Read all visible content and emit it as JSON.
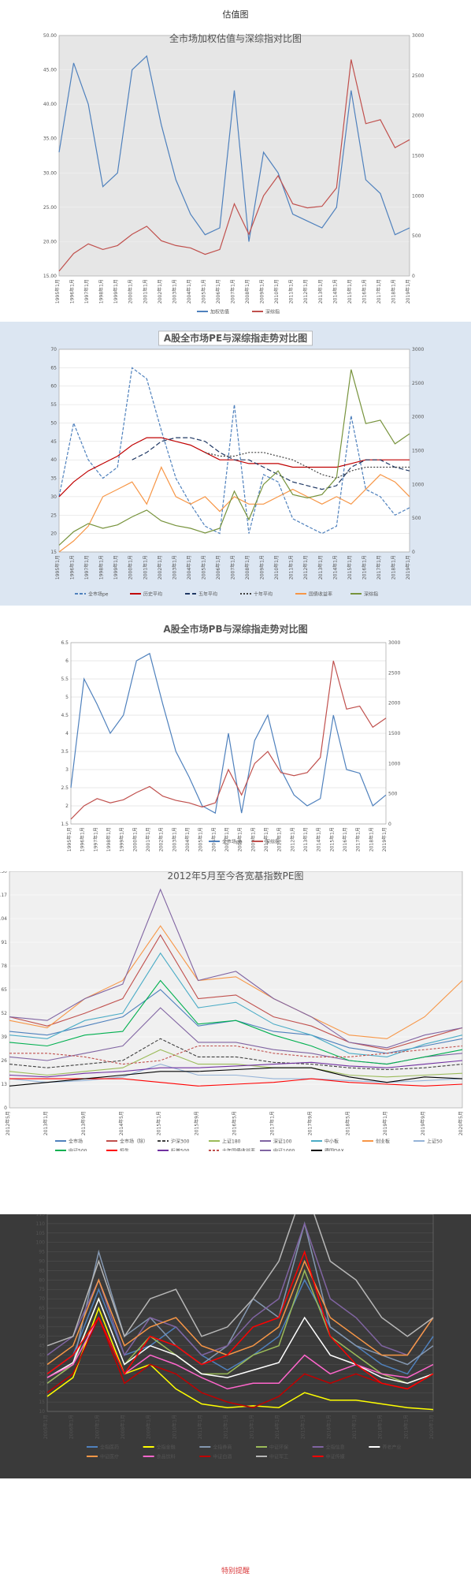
{
  "page": {
    "header": "估值图",
    "footer": "特别提醒"
  },
  "chart_data": [
    {
      "type": "line",
      "title": "全市场加权估值与深综指对比图",
      "ylim": [
        15,
        50
      ],
      "y2lim": [
        0,
        3000
      ],
      "yticks": [
        "15.00",
        "20.00",
        "25.00",
        "30.00",
        "35.00",
        "40.00",
        "45.00",
        "50.00"
      ],
      "y2ticks": [
        "0",
        "500",
        "1000",
        "1500",
        "2000",
        "2500",
        "3000"
      ],
      "x": [
        "1995年1月",
        "1996年1月",
        "1997年1月",
        "1998年1月",
        "1999年1月",
        "2000年1月",
        "2001年1月",
        "2002年1月",
        "2003年1月",
        "2004年1月",
        "2005年1月",
        "2006年1月",
        "2007年1月",
        "2008年1月",
        "2009年1月",
        "2010年1月",
        "2011年1月",
        "2012年1月",
        "2013年1月",
        "2014年1月",
        "2015年1月",
        "2016年1月",
        "2017年1月",
        "2018年1月",
        "2019年1月"
      ],
      "series": [
        {
          "name": "加权估值",
          "axis": "y",
          "color": "#4f81bd",
          "values": [
            33,
            46,
            40,
            28,
            30,
            45,
            47,
            37,
            29,
            24,
            21,
            22,
            42,
            20,
            33,
            30,
            24,
            23,
            22,
            25,
            42,
            29,
            27,
            21,
            22
          ]
        },
        {
          "name": "深综指",
          "axis": "y2",
          "color": "#c0504d",
          "values": [
            60,
            280,
            400,
            330,
            380,
            520,
            620,
            440,
            380,
            350,
            270,
            330,
            900,
            520,
            1000,
            1250,
            900,
            850,
            870,
            1100,
            2700,
            1900,
            1950,
            1600,
            1700
          ]
        }
      ],
      "legend": "bottom"
    },
    {
      "type": "line",
      "title": "A股全市场PE与深综指走势对比图",
      "ylim": [
        15,
        70
      ],
      "y2lim": [
        0,
        3000
      ],
      "yticks": [
        "15",
        "20",
        "25",
        "30",
        "35",
        "40",
        "45",
        "50",
        "55",
        "60",
        "65",
        "70"
      ],
      "y2ticks": [
        "0",
        "500",
        "1000",
        "1500",
        "2000",
        "2500",
        "3000"
      ],
      "x": [
        "1995年1月",
        "1996年1月",
        "1997年1月",
        "1998年1月",
        "1999年1月",
        "2000年1月",
        "2001年1月",
        "2002年1月",
        "2003年1月",
        "2004年1月",
        "2005年1月",
        "2006年1月",
        "2007年1月",
        "2008年1月",
        "2009年1月",
        "2010年1月",
        "2011年1月",
        "2012年1月",
        "2013年1月",
        "2014年1月",
        "2015年1月",
        "2016年1月",
        "2017年1月",
        "2018年1月",
        "2019年1月"
      ],
      "series": [
        {
          "name": "全市场pe",
          "axis": "y",
          "color": "#4f81bd",
          "dash": "4 2",
          "values": [
            30,
            50,
            40,
            35,
            38,
            65,
            62,
            48,
            35,
            28,
            22,
            20,
            55,
            20,
            36,
            34,
            24,
            22,
            20,
            22,
            52,
            32,
            30,
            25,
            27
          ]
        },
        {
          "name": "历史平均",
          "axis": "y",
          "color": "#c00000",
          "values": [
            30,
            34,
            37,
            39,
            41,
            44,
            46,
            46,
            45,
            44,
            42,
            40,
            40,
            39,
            39,
            39,
            38,
            38,
            38,
            38,
            39,
            40,
            40,
            40,
            40
          ]
        },
        {
          "name": "五年平均",
          "axis": "y",
          "color": "#1f3864",
          "dash": "6 3",
          "values": [
            null,
            null,
            null,
            null,
            null,
            40,
            42,
            45,
            46,
            46,
            45,
            42,
            40,
            40,
            38,
            36,
            34,
            33,
            32,
            33,
            38,
            40,
            40,
            38,
            37
          ]
        },
        {
          "name": "十年平均",
          "axis": "y",
          "color": "#404040",
          "dash": "2 2",
          "values": [
            null,
            null,
            null,
            null,
            null,
            null,
            null,
            null,
            null,
            null,
            42,
            41,
            41,
            42,
            42,
            41,
            40,
            38,
            36,
            35,
            37,
            38,
            38,
            38,
            38
          ]
        },
        {
          "name": "国债收益率",
          "axis": "y",
          "color": "#f79646",
          "values": [
            15,
            18,
            22,
            30,
            32,
            34,
            28,
            38,
            30,
            28,
            30,
            26,
            30,
            28,
            28,
            30,
            32,
            30,
            28,
            30,
            28,
            32,
            36,
            34,
            30
          ]
        },
        {
          "name": "深综指",
          "axis": "y2",
          "color": "#77933c",
          "values": [
            100,
            300,
            420,
            350,
            400,
            520,
            620,
            460,
            390,
            350,
            280,
            350,
            900,
            480,
            1000,
            1200,
            850,
            800,
            850,
            1100,
            2700,
            1900,
            1950,
            1600,
            1750
          ]
        }
      ],
      "legend": "bottom"
    },
    {
      "type": "line",
      "title": "A股全市场PB与深综指走势对比图",
      "ylim": [
        1.5,
        6.5
      ],
      "y2lim": [
        0,
        3000
      ],
      "yticks": [
        "1.5",
        "2",
        "2.5",
        "3",
        "3.5",
        "4",
        "4.5",
        "5",
        "5.5",
        "6",
        "6.5"
      ],
      "y2ticks": [
        "0",
        "500",
        "1000",
        "1500",
        "2000",
        "2500",
        "3000"
      ],
      "x": [
        "1995年1月",
        "1996年1月",
        "1997年1月",
        "1998年1月",
        "1999年1月",
        "2000年1月",
        "2001年1月",
        "2002年1月",
        "2003年1月",
        "2004年1月",
        "2005年1月",
        "2006年1月",
        "2007年1月",
        "2008年1月",
        "2009年1月",
        "2010年1月",
        "2011年1月",
        "2012年1月",
        "2013年1月",
        "2014年1月",
        "2015年1月",
        "2016年1月",
        "2017年1月",
        "2018年1月",
        "2019年1月"
      ],
      "series": [
        {
          "name": "全市场pb",
          "axis": "y",
          "color": "#4f81bd",
          "values": [
            2.5,
            5.5,
            4.8,
            4.0,
            4.5,
            6.0,
            6.2,
            4.8,
            3.5,
            2.8,
            2.0,
            1.8,
            4.0,
            1.8,
            3.8,
            4.5,
            3.0,
            2.3,
            2.0,
            2.2,
            4.5,
            3.0,
            2.9,
            2.0,
            2.3
          ]
        },
        {
          "name": "深综指",
          "axis": "y2",
          "color": "#c0504d",
          "values": [
            80,
            300,
            420,
            350,
            400,
            520,
            620,
            460,
            390,
            350,
            280,
            350,
            900,
            480,
            1000,
            1200,
            850,
            800,
            850,
            1100,
            2700,
            1900,
            1950,
            1600,
            1750
          ]
        }
      ],
      "legend": "bottom"
    },
    {
      "type": "line",
      "title": "2012年5月至今各宽基指数PE图",
      "ylim": [
        0,
        130
      ],
      "x": [
        "2012年5月",
        "2013年1月",
        "2013年9月",
        "2014年5月",
        "2015年1月",
        "2015年9月",
        "2016年5月",
        "2017年1月",
        "2017年9月",
        "2018年5月",
        "2019年1月",
        "2019年9月",
        "2020年5月"
      ],
      "series": [
        {
          "name": "全市场",
          "color": "#4f81bd",
          "values": [
            42,
            40,
            45,
            50,
            65,
            45,
            48,
            42,
            40,
            33,
            30,
            34,
            38
          ]
        },
        {
          "name": "全市场（除）",
          "color": "#c0504d",
          "values": [
            50,
            45,
            52,
            60,
            95,
            60,
            62,
            50,
            45,
            36,
            32,
            38,
            44
          ]
        },
        {
          "name": "沪深300",
          "color": "#404040",
          "dash": "4 2",
          "values": [
            24,
            22,
            24,
            26,
            38,
            28,
            28,
            25,
            24,
            22,
            21,
            22,
            24
          ]
        },
        {
          "name": "上证180",
          "color": "#9bbb59",
          "values": [
            20,
            18,
            20,
            22,
            32,
            24,
            24,
            22,
            22,
            18,
            17,
            18,
            19
          ]
        },
        {
          "name": "深证100",
          "color": "#8064a2",
          "values": [
            28,
            26,
            30,
            34,
            55,
            36,
            36,
            32,
            30,
            26,
            24,
            28,
            30
          ]
        },
        {
          "name": "中小板",
          "color": "#4bacc6",
          "values": [
            40,
            38,
            48,
            52,
            85,
            55,
            58,
            46,
            40,
            30,
            28,
            35,
            40
          ]
        },
        {
          "name": "创业板",
          "color": "#f79646",
          "values": [
            48,
            44,
            60,
            70,
            100,
            70,
            72,
            60,
            50,
            40,
            38,
            50,
            70
          ]
        },
        {
          "name": "上证50",
          "color": "#95b3d7",
          "values": [
            16,
            14,
            15,
            17,
            24,
            18,
            18,
            16,
            16,
            15,
            14,
            15,
            16
          ]
        },
        {
          "name": "中证500",
          "color": "#00b050",
          "values": [
            36,
            34,
            40,
            42,
            70,
            46,
            48,
            40,
            34,
            26,
            24,
            28,
            32
          ]
        },
        {
          "name": "恒生",
          "color": "#ff0000",
          "values": [
            16,
            16,
            16,
            16,
            14,
            12,
            13,
            14,
            16,
            14,
            13,
            12,
            13
          ]
        },
        {
          "name": "标普500",
          "color": "#7030a0",
          "values": [
            18,
            17,
            19,
            20,
            22,
            22,
            23,
            24,
            25,
            23,
            22,
            24,
            26
          ]
        },
        {
          "name": "十年国债收益率",
          "color": "#c0504d",
          "dash": "3 2",
          "values": [
            30,
            30,
            28,
            24,
            26,
            34,
            34,
            30,
            28,
            28,
            30,
            32,
            34
          ]
        },
        {
          "name": "中证1000",
          "color": "#8064a2",
          "values": [
            50,
            48,
            60,
            68,
            120,
            70,
            75,
            60,
            50,
            36,
            33,
            40,
            44
          ]
        },
        {
          "name": "德国DAX",
          "color": "#000000",
          "values": [
            12,
            14,
            16,
            18,
            20,
            20,
            21,
            22,
            22,
            17,
            14,
            17,
            16
          ]
        }
      ],
      "legend": "bottom"
    },
    {
      "type": "line",
      "title": "",
      "ylim": [
        10,
        115
      ],
      "yticks": [
        "10",
        "15",
        "20",
        "25",
        "30",
        "35",
        "40",
        "45",
        "50",
        "55",
        "60",
        "65",
        "70",
        "75",
        "80",
        "85",
        "90",
        "95",
        "100",
        "105",
        "110",
        "115"
      ],
      "x": [
        "2005年1月",
        "2006年1月",
        "2007年1月",
        "2008年1月",
        "2009年1月",
        "2010年1月",
        "2011年1月",
        "2012年1月",
        "2013年1月",
        "2014年1月",
        "2015年1月",
        "2016年1月",
        "2017年1月",
        "2018年1月",
        "2019年1月",
        "2020年1月"
      ],
      "series": [
        {
          "name": "全指医药",
          "color": "#4f81bd",
          "values": [
            30,
            40,
            75,
            40,
            45,
            55,
            40,
            32,
            40,
            50,
            80,
            55,
            45,
            35,
            30,
            50
          ]
        },
        {
          "name": "全指金融",
          "color": "#ffff00",
          "values": [
            18,
            28,
            65,
            30,
            35,
            22,
            14,
            12,
            13,
            12,
            20,
            16,
            16,
            14,
            12,
            11
          ]
        },
        {
          "name": "全指券商",
          "color": "#8497b0",
          "values": [
            25,
            35,
            95,
            50,
            60,
            45,
            35,
            45,
            70,
            60,
            110,
            55,
            45,
            40,
            35,
            45
          ]
        },
        {
          "name": "中证环保",
          "color": "#9bbb59",
          "values": [
            25,
            35,
            70,
            35,
            50,
            40,
            30,
            30,
            40,
            45,
            85,
            50,
            40,
            30,
            25,
            30
          ]
        },
        {
          "name": "全指信息",
          "color": "#8064a2",
          "values": [
            40,
            50,
            80,
            40,
            60,
            55,
            40,
            45,
            60,
            70,
            110,
            70,
            60,
            45,
            40,
            60
          ]
        },
        {
          "name": "养老产业",
          "color": "#ffffff",
          "values": [
            28,
            36,
            70,
            35,
            45,
            40,
            30,
            28,
            32,
            36,
            60,
            40,
            35,
            28,
            25,
            30
          ]
        },
        {
          "name": "中证医疗",
          "color": "#f79646",
          "values": [
            35,
            45,
            80,
            45,
            55,
            60,
            45,
            40,
            45,
            55,
            90,
            60,
            50,
            40,
            40,
            60
          ]
        },
        {
          "name": "食品饮料",
          "color": "#ff66cc",
          "values": [
            28,
            35,
            60,
            30,
            40,
            35,
            28,
            22,
            25,
            25,
            40,
            30,
            35,
            30,
            28,
            35
          ]
        },
        {
          "name": "中证白酒",
          "color": "#c00000",
          "values": [
            20,
            30,
            60,
            25,
            35,
            30,
            20,
            15,
            12,
            18,
            30,
            25,
            30,
            25,
            22,
            30
          ]
        },
        {
          "name": "中证军工",
          "color": "#b7b7b7",
          "values": [
            45,
            50,
            90,
            50,
            70,
            75,
            50,
            55,
            70,
            90,
            130,
            90,
            80,
            60,
            50,
            60
          ]
        },
        {
          "name": "中证传媒",
          "color": "#ff0000",
          "values": [
            30,
            40,
            60,
            30,
            50,
            45,
            35,
            40,
            55,
            60,
            95,
            50,
            35,
            25,
            22,
            30
          ]
        }
      ],
      "legend": "bottom"
    }
  ]
}
